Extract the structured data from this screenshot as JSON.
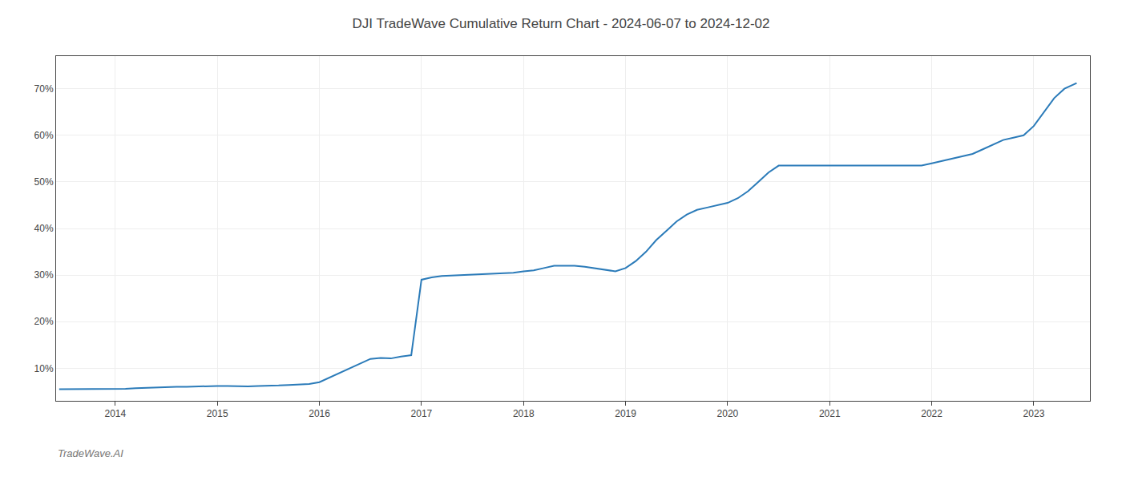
{
  "chart_data": {
    "type": "line",
    "title": "DJI TradeWave Cumulative Return Chart - 2024-06-07 to 2024-12-02",
    "annotations": [
      "TradeWave.AI"
    ],
    "color": "#2b7bb9",
    "x": [
      2013.45,
      2013.55,
      2013.65,
      2013.75,
      2013.85,
      2013.95,
      2014.0,
      2014.1,
      2014.2,
      2014.3,
      2014.4,
      2014.5,
      2014.6,
      2014.7,
      2014.8,
      2014.9,
      2015.0,
      2015.1,
      2015.2,
      2015.3,
      2015.4,
      2015.5,
      2015.6,
      2015.7,
      2015.8,
      2015.9,
      2016.0,
      2016.1,
      2016.2,
      2016.3,
      2016.4,
      2016.5,
      2016.6,
      2016.7,
      2016.8,
      2016.9,
      2017.0,
      2017.1,
      2017.2,
      2017.3,
      2017.4,
      2017.5,
      2017.6,
      2017.7,
      2017.8,
      2017.9,
      2018.0,
      2018.1,
      2018.2,
      2018.3,
      2018.4,
      2018.5,
      2018.6,
      2018.7,
      2018.8,
      2018.9,
      2019.0,
      2019.1,
      2019.2,
      2019.3,
      2019.4,
      2019.5,
      2019.6,
      2019.7,
      2019.8,
      2019.9,
      2020.0,
      2020.1,
      2020.2,
      2020.3,
      2020.4,
      2020.5,
      2020.6,
      2020.7,
      2020.8,
      2020.9,
      2021.0,
      2021.1,
      2021.2,
      2021.3,
      2021.4,
      2021.5,
      2021.6,
      2021.7,
      2021.8,
      2021.9,
      2022.0,
      2022.1,
      2022.2,
      2022.3,
      2022.4,
      2022.5,
      2022.6,
      2022.7,
      2022.8,
      2022.9,
      2023.0,
      2023.1,
      2023.2,
      2023.3,
      2023.4,
      2023.42
    ],
    "values": [
      5.5,
      5.5,
      5.5,
      5.5,
      5.5,
      5.5,
      5.5,
      5.6,
      5.7,
      5.8,
      5.8,
      5.9,
      6.0,
      6.0,
      6.1,
      6.1,
      6.2,
      6.2,
      6.1,
      6.1,
      6.2,
      6.2,
      6.3,
      6.4,
      6.5,
      6.6,
      7.0,
      8.0,
      9.0,
      10.0,
      11.0,
      12.0,
      12.2,
      12.1,
      12.5,
      12.8,
      29.0,
      29.5,
      29.8,
      29.9,
      30.0,
      30.1,
      30.2,
      30.3,
      30.4,
      30.5,
      30.8,
      31.0,
      31.5,
      32.0,
      32.0,
      32.0,
      31.8,
      31.5,
      31.2,
      30.8,
      31.5,
      33.0,
      35.0,
      37.5,
      39.5,
      41.5,
      43.0,
      44.0,
      44.5,
      45.0,
      45.5,
      46.5,
      48.0,
      50.0,
      52.0,
      53.5,
      53.5,
      53.5,
      53.4,
      53.4,
      53.5,
      53.5,
      53.5,
      53.5,
      53.5,
      53.5,
      53.5,
      53.5,
      53.5,
      53.5,
      54.0,
      54.5,
      55.0,
      55.5,
      56.0,
      57.0,
      58.0,
      59.0,
      59.5,
      60.0,
      62.0,
      65.0,
      68.0,
      70.0,
      71.0,
      71.2
    ],
    "xlim": [
      2013.42,
      2023.55
    ],
    "xticks": [
      2014,
      2015,
      2016,
      2017,
      2018,
      2019,
      2020,
      2021,
      2022,
      2023
    ],
    "ylim": [
      3,
      77
    ],
    "yticks": [
      {
        "value": 10,
        "label": "10%"
      },
      {
        "value": 20,
        "label": "20%"
      },
      {
        "value": 30,
        "label": "30%"
      },
      {
        "value": 40,
        "label": "40%"
      },
      {
        "value": 50,
        "label": "50%"
      },
      {
        "value": 60,
        "label": "60%"
      },
      {
        "value": 70,
        "label": "70%"
      }
    ],
    "grid": true
  }
}
